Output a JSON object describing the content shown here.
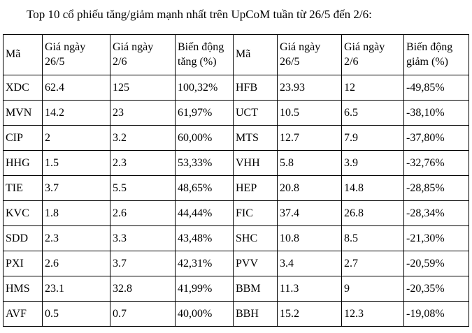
{
  "title": "Top 10 cổ phiếu tăng/giảm mạnh nhất trên UpCoM tuần từ 26/5 đến 2/6:",
  "table": {
    "headers": [
      "Mã",
      "Giá ngày\n26/5",
      "Giá ngày\n2/6",
      "Biến động\ntăng (%)",
      "Mã",
      "Giá ngày\n26/5",
      "Giá ngày\n2/6",
      "Biến động\ngiảm (%)"
    ],
    "rows": [
      [
        "XDC",
        "62.4",
        "125",
        "100,32%",
        "HFB",
        "23.93",
        "12",
        "-49,85%"
      ],
      [
        "MVN",
        "14.2",
        "23",
        "61,97%",
        "UCT",
        "10.5",
        "6.5",
        "-38,10%"
      ],
      [
        "CIP",
        "2",
        "3.2",
        "60,00%",
        "MTS",
        "12.7",
        "7.9",
        "-37,80%"
      ],
      [
        "HHG",
        "1.5",
        "2.3",
        "53,33%",
        "VHH",
        "5.8",
        "3.9",
        "-32,76%"
      ],
      [
        "TIE",
        "3.7",
        "5.5",
        "48,65%",
        "HEP",
        "20.8",
        "14.8",
        "-28,85%"
      ],
      [
        "KVC",
        "1.8",
        "2.6",
        "44,44%",
        "FIC",
        "37.4",
        "26.8",
        "-28,34%"
      ],
      [
        "SDD",
        "2.3",
        "3.3",
        "43,48%",
        "SHC",
        "10.8",
        "8.5",
        "-21,30%"
      ],
      [
        "PXI",
        "2.6",
        "3.7",
        "42,31%",
        "PVV",
        "3.4",
        "2.7",
        "-20,59%"
      ],
      [
        "HMS",
        "23.1",
        "32.8",
        "41,99%",
        "BBM",
        "11.3",
        "9",
        "-20,35%"
      ],
      [
        "AVF",
        "0.5",
        "0.7",
        "40,00%",
        "BBH",
        "15.2",
        "12.3",
        "-19,08%"
      ]
    ]
  },
  "colors": {
    "text": "#000000",
    "border": "#000000",
    "background": "#ffffff"
  }
}
